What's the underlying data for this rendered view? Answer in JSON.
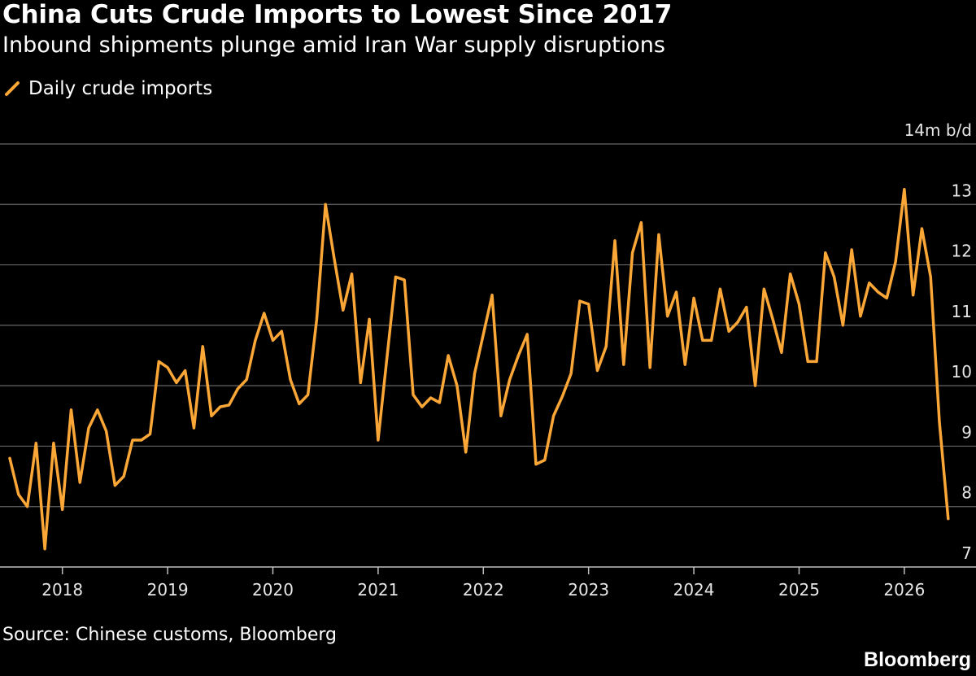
{
  "header": {
    "title": "China Cuts Crude Imports to Lowest Since 2017",
    "subtitle": "Inbound shipments plunge amid Iran War supply disruptions"
  },
  "legend": {
    "label": "Daily crude imports",
    "icon": "orange-line-swatch-icon"
  },
  "footer": {
    "source": "Source: Chinese customs, Bloomberg",
    "brand": "Bloomberg"
  },
  "colors": {
    "background": "#000000",
    "line": "#fba737",
    "grid": "#666666",
    "text": "#ffffff"
  },
  "chart_data": {
    "type": "line",
    "series": [
      {
        "name": "Daily crude imports",
        "values": [
          8.8,
          8.2,
          8.0,
          9.05,
          7.3,
          9.05,
          7.95,
          9.6,
          8.4,
          9.3,
          9.6,
          9.25,
          8.35,
          8.5,
          9.1,
          9.1,
          9.2,
          10.4,
          10.3,
          10.05,
          10.25,
          9.3,
          10.65,
          9.5,
          9.65,
          9.68,
          9.95,
          10.1,
          10.75,
          11.2,
          10.75,
          10.9,
          10.1,
          9.7,
          9.85,
          11.1,
          13.0,
          12.1,
          11.25,
          11.85,
          10.05,
          11.1,
          9.1,
          10.45,
          11.8,
          11.75,
          9.85,
          9.65,
          9.8,
          9.72,
          10.5,
          10.0,
          8.9,
          10.2,
          10.85,
          11.5,
          9.5,
          10.1,
          10.5,
          10.85,
          8.7,
          8.77,
          9.5,
          9.82,
          10.2,
          11.4,
          11.35,
          10.25,
          10.65,
          12.4,
          10.35,
          12.2,
          12.7,
          10.3,
          12.5,
          11.15,
          11.55,
          10.35,
          11.45,
          10.75,
          10.75,
          11.6,
          10.9,
          11.05,
          11.3,
          10.0,
          11.6,
          11.1,
          10.55,
          11.85,
          11.35,
          10.4,
          10.4,
          12.2,
          11.8,
          11.0,
          12.25,
          11.15,
          11.7,
          11.55,
          11.45,
          12.05,
          13.25,
          11.5,
          12.6,
          11.8,
          9.4,
          7.8
        ]
      }
    ],
    "start": "2017-07",
    "end": "2026-05",
    "x_tick_labels": [
      "2018",
      "2019",
      "2020",
      "2021",
      "2022",
      "2023",
      "2024",
      "2025",
      "2026"
    ],
    "y_tick_labels": [
      "7",
      "8",
      "9",
      "10",
      "11",
      "12",
      "13",
      "14m b/d"
    ],
    "ylim": [
      7,
      14
    ],
    "ylabel": "",
    "xlabel": "",
    "grid": true,
    "legend_position": "top-left"
  }
}
